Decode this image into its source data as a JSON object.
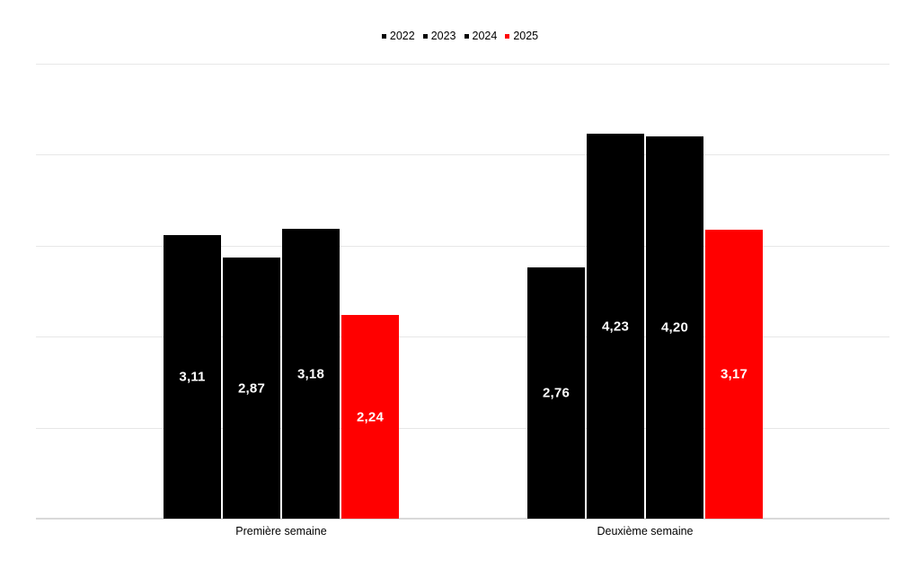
{
  "chart_data": {
    "type": "bar",
    "title": "",
    "categories": [
      "Première semaine",
      "Deuxième semaine"
    ],
    "series": [
      {
        "name": "2022",
        "color": "#000000",
        "values": [
          3.11,
          2.76
        ],
        "labels": [
          "3,11",
          "2,76"
        ]
      },
      {
        "name": "2023",
        "color": "#000000",
        "values": [
          2.87,
          4.23
        ],
        "labels": [
          "2,87",
          "4,23"
        ]
      },
      {
        "name": "2024",
        "color": "#000000",
        "values": [
          3.18,
          4.2
        ],
        "labels": [
          "3,18",
          "4,20"
        ]
      },
      {
        "name": "2025",
        "color": "#ff0000",
        "values": [
          2.24,
          3.17
        ],
        "labels": [
          "2,24",
          "3,17"
        ]
      }
    ],
    "ylim": [
      0,
      5
    ],
    "gridline_step": 1,
    "grid": true,
    "y_tick_labels_visible": false,
    "legend_position": "top",
    "legend": [
      {
        "label": "2022",
        "color": "#000000"
      },
      {
        "label": "2023",
        "color": "#000000"
      },
      {
        "label": "2024",
        "color": "#000000"
      },
      {
        "label": "2025",
        "color": "#ff0000"
      }
    ],
    "colors": {
      "background": "#ffffff",
      "value_label": "#ffffff",
      "gridline": "#e7e7e7",
      "axis_line": "#d9d9d9",
      "legend_text": "#000000",
      "category_label": "#000000"
    }
  }
}
